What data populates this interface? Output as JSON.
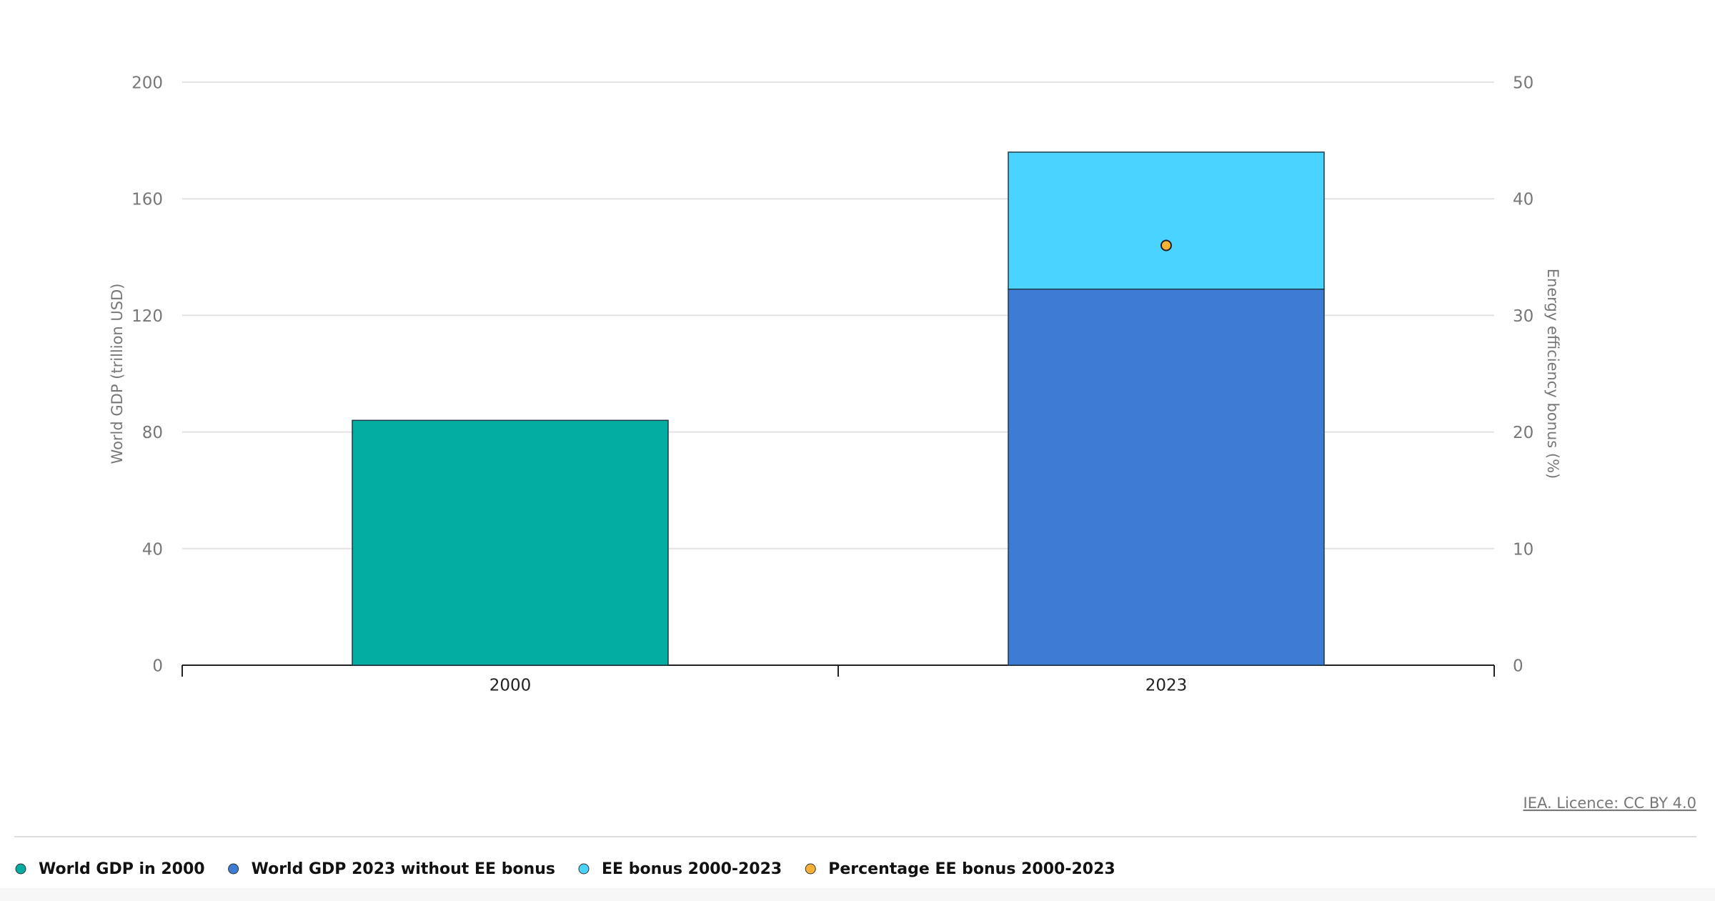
{
  "chart_data": {
    "type": "bar",
    "stacked": true,
    "ylabel": "World GDP (trillion USD)",
    "y2label": "Energy efficiency bonus (%)",
    "categories": [
      "2000",
      "2023"
    ],
    "series": [
      {
        "name": "World GDP in 2000",
        "color": "#03ad9f",
        "values": [
          84,
          null
        ]
      },
      {
        "name": "World GDP 2023 without EE bonus",
        "color": "#3d7bd5",
        "values": [
          null,
          129
        ]
      },
      {
        "name": "EE bonus 2000-2023",
        "color": "#4ad3ff",
        "values": [
          null,
          47
        ]
      },
      {
        "name": "Percentage EE bonus 2000-2023",
        "color": "#f6b136",
        "type": "scatter",
        "axis": "y2",
        "values": [
          null,
          36
        ]
      }
    ],
    "ylim": [
      0,
      200
    ],
    "yticks": [
      0,
      40,
      80,
      120,
      160,
      200
    ],
    "y2lim": [
      0,
      50
    ],
    "y2ticks": [
      0,
      10,
      20,
      30,
      40,
      50
    ],
    "grid": true,
    "legend": "bottom-left",
    "credit": "IEA. Licence: CC BY 4.0"
  }
}
